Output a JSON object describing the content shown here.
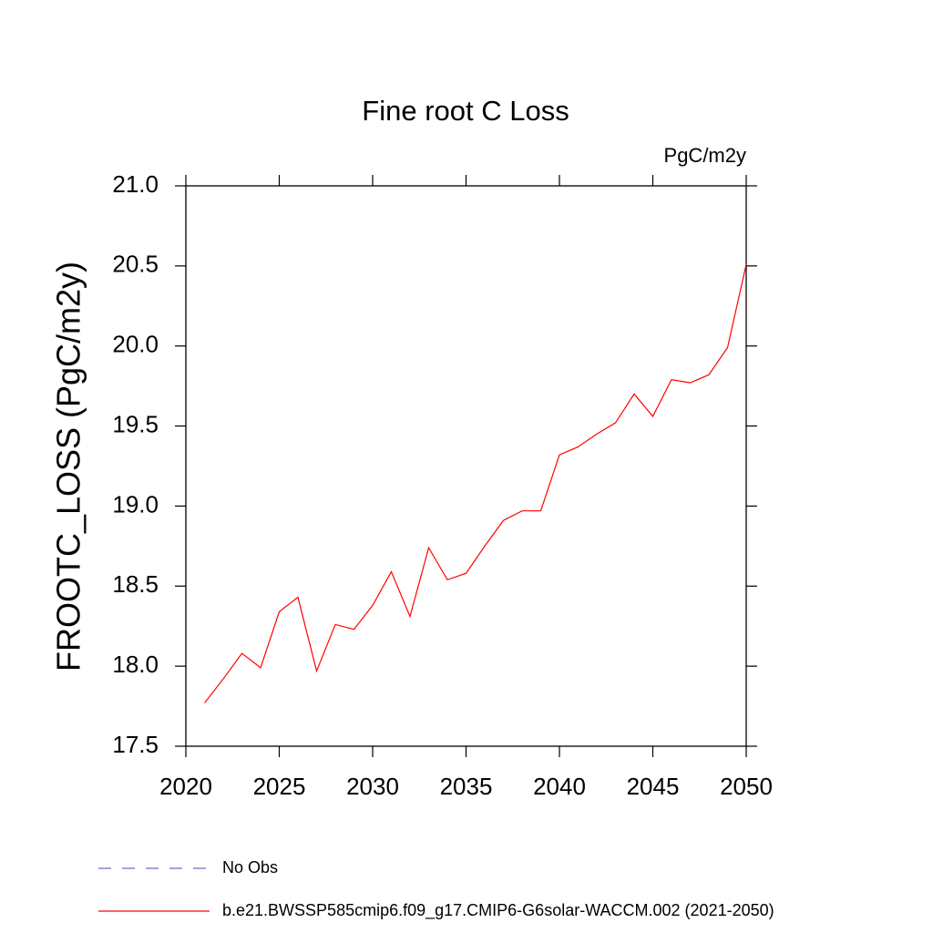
{
  "chart_data": {
    "type": "line",
    "title": "Fine root C Loss",
    "units": "PgC/m2y",
    "y_label": "FROOTC_LOSS  (PgC/m2y)",
    "x": [
      2021,
      2022,
      2023,
      2024,
      2025,
      2026,
      2027,
      2028,
      2029,
      2030,
      2031,
      2032,
      2033,
      2034,
      2035,
      2036,
      2037,
      2038,
      2039,
      2040,
      2041,
      2042,
      2043,
      2044,
      2045,
      2046,
      2047,
      2048,
      2049,
      2050
    ],
    "series": [
      {
        "name": "No Obs",
        "color": "#7b68c8",
        "dash": true,
        "values": [
          null,
          null,
          null,
          null,
          null,
          null,
          null,
          null,
          null,
          null,
          null,
          null,
          null,
          null,
          null,
          null,
          null,
          null,
          null,
          null,
          null,
          null,
          null,
          null,
          null,
          null,
          null,
          null,
          null,
          null
        ]
      },
      {
        "name": "b.e21.BWSSP585cmip6.f09_g17.CMIP6-G6solar-WACCM.002 (2021-2050)",
        "color": "#ff0000",
        "dash": false,
        "values": [
          17.77,
          17.92,
          18.08,
          17.99,
          18.34,
          18.43,
          17.97,
          18.26,
          18.23,
          18.38,
          18.59,
          18.31,
          18.74,
          18.54,
          18.58,
          18.75,
          18.91,
          18.97,
          18.97,
          19.32,
          19.37,
          19.45,
          19.52,
          19.7,
          19.56,
          19.79,
          19.77,
          19.82,
          19.99,
          20.51
        ]
      }
    ],
    "xlim": [
      2020,
      2050
    ],
    "xticks": [
      2020,
      2025,
      2030,
      2035,
      2040,
      2045,
      2050
    ],
    "ylim": [
      17.5,
      21
    ],
    "yticks": [
      17.5,
      {
        "value": 18,
        "label": "18.0"
      },
      18.5,
      {
        "value": 19,
        "label": "19.0"
      },
      19.5,
      {
        "value": 20,
        "label": "20.0"
      },
      20.5,
      {
        "value": 21,
        "label": "21.0"
      }
    ]
  }
}
